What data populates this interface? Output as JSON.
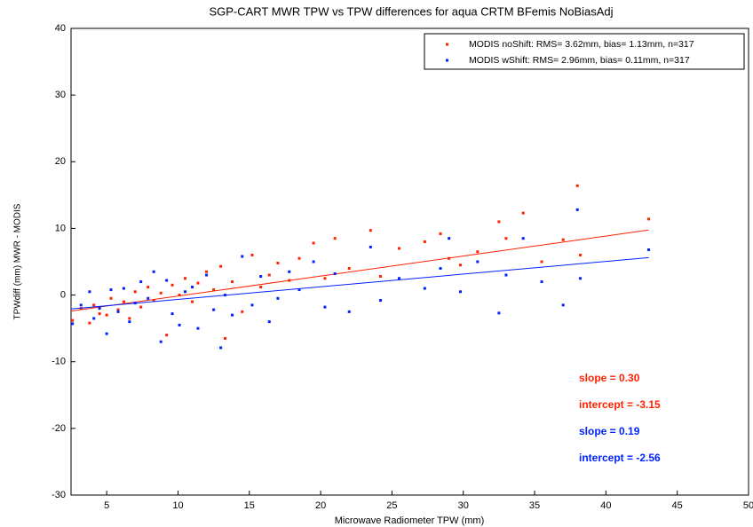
{
  "chart_data": {
    "type": "scatter",
    "title": "SGP-CART MWR TPW vs TPW differences for aqua CRTM BFemis NoBiasAdj",
    "x_label": "Microwave Radiometer TPW (mm)",
    "y_label": "TPWdiff (mm) MWR - MODIS",
    "xlim": [
      2.5,
      50
    ],
    "ylim": [
      -30,
      40
    ],
    "xticks": [
      5,
      10,
      15,
      20,
      25,
      30,
      35,
      40,
      45,
      50
    ],
    "yticks": [
      -30,
      -20,
      -10,
      0,
      10,
      20,
      30,
      40
    ],
    "legend": "upper right",
    "series": [
      {
        "name": "MODIS noShift:  RMS= 3.62mm, bias= 1.13mm, n=317",
        "color": "#ff2200",
        "x": [
          2.6,
          3.2,
          3.8,
          4.1,
          4.5,
          5.0,
          5.3,
          5.8,
          6.2,
          6.6,
          7.0,
          7.4,
          7.9,
          8.3,
          8.8,
          9.2,
          9.6,
          10.1,
          10.5,
          11.0,
          11.4,
          12.0,
          12.5,
          13.0,
          13.3,
          13.8,
          14.5,
          15.2,
          15.8,
          16.4,
          17.0,
          17.8,
          18.5,
          19.5,
          20.3,
          21.0,
          22.0,
          23.5,
          24.2,
          25.5,
          27.3,
          28.4,
          29.0,
          29.8,
          31.0,
          32.5,
          33.0,
          34.2,
          35.5,
          37.0,
          38.0,
          38.2,
          43.0
        ],
        "values": [
          -3.8,
          -2.0,
          -4.2,
          -1.5,
          -2.8,
          -3.0,
          -0.5,
          -2.2,
          -1.0,
          -3.5,
          0.5,
          -1.8,
          1.2,
          -0.8,
          0.3,
          -6.0,
          1.5,
          0.0,
          2.5,
          -1.0,
          1.8,
          3.5,
          0.8,
          4.3,
          -6.5,
          2.0,
          -2.5,
          6.0,
          1.2,
          3.0,
          4.8,
          2.2,
          5.5,
          7.8,
          2.5,
          8.5,
          4.0,
          9.7,
          2.8,
          7.0,
          8.0,
          9.2,
          5.5,
          4.5,
          6.5,
          11.0,
          8.5,
          12.3,
          5.0,
          8.3,
          16.4,
          6.0,
          11.4
        ],
        "fit_x": [
          2.5,
          43
        ],
        "fit_y": [
          -2.4,
          9.75
        ]
      },
      {
        "name": "MODIS wShift:  RMS= 2.96mm, bias= 0.11mm, n=317",
        "color": "#0022ff",
        "x": [
          2.6,
          3.2,
          3.8,
          4.1,
          4.5,
          5.0,
          5.3,
          5.8,
          6.2,
          6.6,
          7.0,
          7.4,
          7.9,
          8.3,
          8.8,
          9.2,
          9.6,
          10.1,
          10.5,
          11.0,
          11.4,
          12.0,
          12.5,
          13.0,
          13.3,
          13.8,
          14.5,
          15.2,
          15.8,
          16.4,
          17.0,
          17.8,
          18.5,
          19.5,
          20.3,
          21.0,
          22.0,
          23.5,
          24.2,
          25.5,
          27.3,
          28.4,
          29.0,
          29.8,
          31.0,
          32.5,
          33.0,
          34.2,
          35.5,
          37.0,
          38.0,
          38.2,
          43.0
        ],
        "values": [
          -4.3,
          -1.5,
          0.5,
          -3.5,
          -2.0,
          -5.8,
          0.8,
          -2.5,
          1.0,
          -4.0,
          -1.2,
          2.0,
          -0.5,
          3.5,
          -7.0,
          2.2,
          -2.8,
          -4.5,
          0.5,
          1.2,
          -5.0,
          3.0,
          -2.2,
          -7.9,
          0.0,
          -3.0,
          5.8,
          -1.5,
          2.8,
          -4.0,
          -0.5,
          3.5,
          0.8,
          5.0,
          -1.8,
          3.2,
          -2.5,
          7.2,
          -0.8,
          2.5,
          1.0,
          4.0,
          8.5,
          0.5,
          5.0,
          -2.7,
          3.0,
          8.5,
          2.0,
          -1.5,
          12.8,
          2.5,
          6.8
        ],
        "fit_x": [
          2.5,
          43
        ],
        "fit_y": [
          -2.08,
          5.61
        ]
      }
    ],
    "annotations": [
      {
        "text": "slope = 0.30",
        "color": "#ff2200"
      },
      {
        "text": "intercept = -3.15",
        "color": "#ff2200"
      },
      {
        "text": "slope = 0.19",
        "color": "#0022ff"
      },
      {
        "text": "intercept = -2.56",
        "color": "#0022ff"
      }
    ]
  }
}
